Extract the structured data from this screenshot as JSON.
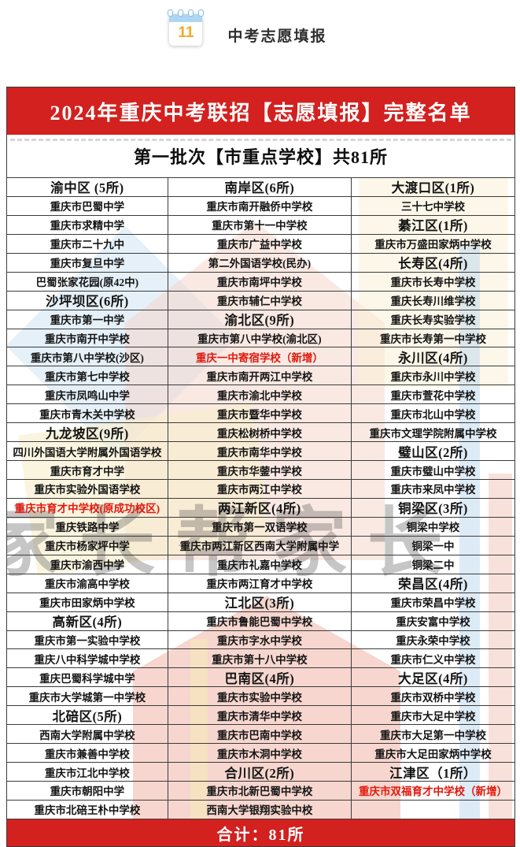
{
  "badge": {
    "day": "11",
    "label": "中考志愿填报"
  },
  "banner": {
    "title": "2024年重庆中考联招【志愿填报】完整名单"
  },
  "subheader": {
    "text": "第一批次【市重点学校】共81所"
  },
  "footer": {
    "total": "合计：81所"
  },
  "watermark": {
    "text": "家长帮家长"
  },
  "colors": {
    "banner_red": "#d2211f",
    "highlight_red": "#e2180d"
  },
  "table": {
    "columns": [
      {
        "cells": [
          {
            "text": "渝中区 (5所)",
            "style": "district"
          },
          {
            "text": "重庆市巴蜀中学",
            "style": "school"
          },
          {
            "text": "重庆市求精中学",
            "style": "school"
          },
          {
            "text": "重庆市二十九中",
            "style": "school"
          },
          {
            "text": "重庆市复旦中学",
            "style": "school"
          },
          {
            "text": "巴蜀张家花园(原42中)",
            "style": "school"
          },
          {
            "text": "沙坪坝区(6所)",
            "style": "district"
          },
          {
            "text": "重庆市第一中学",
            "style": "school"
          },
          {
            "text": "重庆市南开中学校",
            "style": "school"
          },
          {
            "text": "重庆市第八中学校(沙区)",
            "style": "school"
          },
          {
            "text": "重庆市第七中学校",
            "style": "school"
          },
          {
            "text": "重庆市凤鸣山中学",
            "style": "school"
          },
          {
            "text": "重庆市青木关中学校",
            "style": "school"
          },
          {
            "text": "九龙坡区(9所)",
            "style": "district"
          },
          {
            "text": "四川外国语大学附属外国语学校",
            "style": "school"
          },
          {
            "text": "重庆市育才中学",
            "style": "school"
          },
          {
            "text": "重庆市实验外国语学校",
            "style": "school"
          },
          {
            "text": "重庆市育才中学校(原成功校区)",
            "style": "new"
          },
          {
            "text": "重庆铁路中学",
            "style": "school"
          },
          {
            "text": "重庆市杨家坪中学",
            "style": "school"
          },
          {
            "text": "重庆市渝西中学",
            "style": "school"
          },
          {
            "text": "重庆市渝高中学校",
            "style": "school"
          },
          {
            "text": "重庆市田家炳中学校",
            "style": "school"
          },
          {
            "text": "高新区(4所)",
            "style": "district"
          },
          {
            "text": "重庆市第一实验中学校",
            "style": "school"
          },
          {
            "text": "重庆八中科学城中学校",
            "style": "school"
          },
          {
            "text": "重庆巴蜀科学城中学",
            "style": "school"
          },
          {
            "text": "重庆市大学城第一中学校",
            "style": "school"
          },
          {
            "text": "北碚区(5所)",
            "style": "district"
          },
          {
            "text": "西南大学附属中学校",
            "style": "school"
          },
          {
            "text": "重庆市兼善中学校",
            "style": "school"
          },
          {
            "text": "重庆市江北中学校",
            "style": "school"
          },
          {
            "text": "重庆市朝阳中学",
            "style": "school"
          },
          {
            "text": "重庆市北碚王朴中学校",
            "style": "school"
          }
        ]
      },
      {
        "cells": [
          {
            "text": "南岸区(6所)",
            "style": "district"
          },
          {
            "text": "重庆市南开融侨中学校",
            "style": "school"
          },
          {
            "text": "重庆市第十一中学校",
            "style": "school"
          },
          {
            "text": "重庆市广益中学校",
            "style": "school"
          },
          {
            "text": "第二外国语学校(民办)",
            "style": "school"
          },
          {
            "text": "重庆市南坪中学校",
            "style": "school"
          },
          {
            "text": "重庆市辅仁中学校",
            "style": "school"
          },
          {
            "text": "渝北区(9所)",
            "style": "district"
          },
          {
            "text": "重庆市第八中学校(渝北区)",
            "style": "school"
          },
          {
            "text": "重庆一中寄宿学校（新增）",
            "style": "new"
          },
          {
            "text": "重庆市南开两江中学校",
            "style": "school"
          },
          {
            "text": "重庆市渝北中学校",
            "style": "school"
          },
          {
            "text": "重庆市暨华中学校",
            "style": "school"
          },
          {
            "text": "重庆松树桥中学校",
            "style": "school"
          },
          {
            "text": "重庆市南华中学校",
            "style": "school"
          },
          {
            "text": "重庆市华蓥中学校",
            "style": "school"
          },
          {
            "text": "重庆市两江中学校",
            "style": "school"
          },
          {
            "text": "两江新区(4所)",
            "style": "district"
          },
          {
            "text": "重庆市第一双语学校",
            "style": "school"
          },
          {
            "text": "重庆市两江新区西南大学附属中学",
            "style": "school"
          },
          {
            "text": "重庆市礼嘉中学校",
            "style": "school"
          },
          {
            "text": "重庆市两江育才中学校",
            "style": "school"
          },
          {
            "text": "江北区(3所)",
            "style": "district"
          },
          {
            "text": "重庆市鲁能巴蜀中学校",
            "style": "school"
          },
          {
            "text": "重庆市字水中学校",
            "style": "school"
          },
          {
            "text": "重庆市第十八中学校",
            "style": "school"
          },
          {
            "text": "巴南区(4所)",
            "style": "district"
          },
          {
            "text": "重庆市实验中学校",
            "style": "school"
          },
          {
            "text": "重庆市清华中学校",
            "style": "school"
          },
          {
            "text": "重庆市巴南中学校",
            "style": "school"
          },
          {
            "text": "重庆市木洞中学校",
            "style": "school"
          },
          {
            "text": "合川区(2所)",
            "style": "district"
          },
          {
            "text": "重庆市北新巴蜀中学校",
            "style": "school"
          },
          {
            "text": "西南大学银翔实验中校",
            "style": "school"
          }
        ]
      },
      {
        "cells": [
          {
            "text": "大渡口区(1所)",
            "style": "district"
          },
          {
            "text": "三十七中学校",
            "style": "school"
          },
          {
            "text": "綦江区(1所)",
            "style": "district"
          },
          {
            "text": "重庆市万盛田家炳中学校",
            "style": "school"
          },
          {
            "text": "长寿区(4所)",
            "style": "district"
          },
          {
            "text": "重庆市长寿中学校",
            "style": "school"
          },
          {
            "text": "重庆长寿川维学校",
            "style": "school"
          },
          {
            "text": "重庆长寿实验学校",
            "style": "school"
          },
          {
            "text": "重庆市长寿第一中学校",
            "style": "school"
          },
          {
            "text": "永川区(4所)",
            "style": "district"
          },
          {
            "text": "重庆市永川中学校",
            "style": "school"
          },
          {
            "text": "重庆市萱花中学校",
            "style": "school"
          },
          {
            "text": "重庆市北山中学校",
            "style": "school"
          },
          {
            "text": "重庆市文理学院附属中学校",
            "style": "school"
          },
          {
            "text": "璧山区(2所)",
            "style": "district"
          },
          {
            "text": "重庆市璧山中学校",
            "style": "school"
          },
          {
            "text": "重庆市来凤中学校",
            "style": "school"
          },
          {
            "text": "铜梁区(3所)",
            "style": "district"
          },
          {
            "text": "铜梁中学校",
            "style": "school"
          },
          {
            "text": "铜梁一中",
            "style": "school"
          },
          {
            "text": "铜梁二中",
            "style": "school"
          },
          {
            "text": "荣昌区(4所)",
            "style": "district"
          },
          {
            "text": "重庆市荣昌中学校",
            "style": "school"
          },
          {
            "text": "重庆安富中学校",
            "style": "school"
          },
          {
            "text": "重庆永荣中学校",
            "style": "school"
          },
          {
            "text": "重庆市仁义中学校",
            "style": "school"
          },
          {
            "text": "大足区(4所)",
            "style": "district"
          },
          {
            "text": "重庆市双桥中学校",
            "style": "school"
          },
          {
            "text": "重庆市大足中学校",
            "style": "school"
          },
          {
            "text": "重庆市大足第一中学校",
            "style": "school"
          },
          {
            "text": "重庆市大足田家炳中学校",
            "style": "school"
          },
          {
            "text": "江津区（1所）",
            "style": "district"
          },
          {
            "text": "重庆市双福育才中学校（新增）",
            "style": "new"
          },
          {
            "text": "",
            "style": "empty"
          }
        ]
      }
    ]
  }
}
